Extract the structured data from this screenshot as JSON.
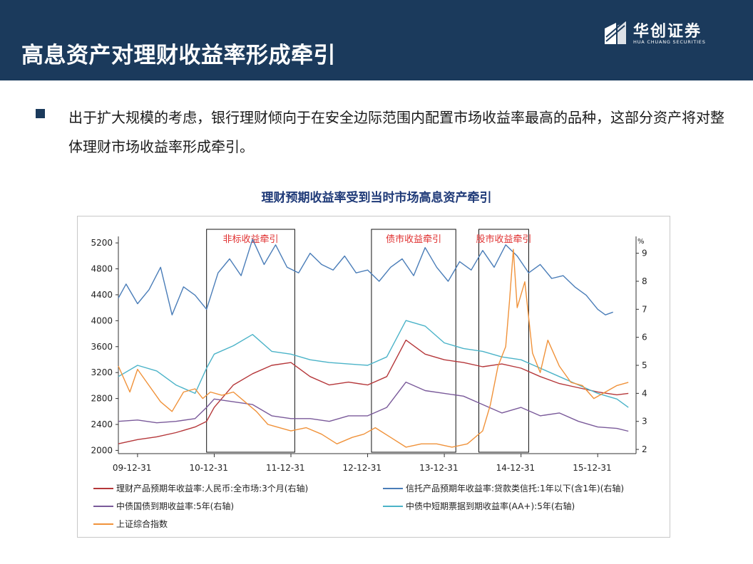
{
  "header": {
    "title": "高息资产对理财收益率形成牵引"
  },
  "logo": {
    "name_cn": "华创证券",
    "name_en": "HUA CHUANG SECURITIES"
  },
  "bullet": {
    "text": "出于扩大规模的考虑，银行理财倾向于在安全边际范围内配置市场收益率最高的品种，这部分资产将对整体理财市场收益率形成牵引。"
  },
  "colors": {
    "header_bg": "#1b3a5c",
    "chart_title": "#1f3a78",
    "wealth": "#b5373a",
    "trust": "#4a7db8",
    "govbond": "#7a5a9a",
    "note": "#4bb3c8",
    "sh": "#f0923a",
    "annotation": "#e03030"
  },
  "chart_data": {
    "type": "line",
    "title": "理财预期收益率受到当时市场高息资产牵引",
    "x_ticks": [
      "09-12-31",
      "10-12-31",
      "11-12-31",
      "12-12-31",
      "13-12-31",
      "14-12-31",
      "15-12-31"
    ],
    "x_range": [
      2009.75,
      2016.5
    ],
    "left_axis": {
      "ticks": [
        2000,
        2400,
        2800,
        3200,
        3600,
        4000,
        4400,
        4800,
        5200
      ],
      "range": [
        1950,
        5300
      ]
    },
    "right_axis": {
      "unit": "%",
      "ticks": [
        2,
        3,
        4,
        5,
        6,
        7,
        8,
        9
      ],
      "range": [
        1.85,
        9.6
      ]
    },
    "boxes": [
      {
        "label": "非标收益牵引",
        "x_from": 2010.9,
        "x_to": 2012.05
      },
      {
        "label": "债市收益牵引",
        "x_from": 2013.05,
        "x_to": 2014.15
      },
      {
        "label": "股市收益牵引",
        "x_from": 2014.45,
        "x_to": 2015.1
      }
    ],
    "series": [
      {
        "name": "理财产品预期年收益率:人民币:全市场:3个月(右轴)",
        "axis": "right",
        "color": "#b5373a",
        "x": [
          2009.75,
          2010.0,
          2010.25,
          2010.5,
          2010.75,
          2010.9,
          2011.0,
          2011.25,
          2011.5,
          2011.75,
          2012.0,
          2012.25,
          2012.5,
          2012.75,
          2013.0,
          2013.25,
          2013.5,
          2013.75,
          2014.0,
          2014.25,
          2014.5,
          2014.75,
          2015.0,
          2015.25,
          2015.5,
          2015.75,
          2016.0,
          2016.25,
          2016.4
        ],
        "values": [
          2.2,
          2.35,
          2.45,
          2.6,
          2.8,
          3.0,
          3.5,
          4.3,
          4.7,
          5.0,
          5.1,
          4.6,
          4.3,
          4.4,
          4.3,
          4.6,
          5.9,
          5.4,
          5.2,
          5.1,
          4.95,
          5.05,
          4.9,
          4.6,
          4.35,
          4.2,
          4.05,
          3.95,
          4.0
        ]
      },
      {
        "name": "信托产品预期年收益率:贷款类信托:1年以下(含1年)(右轴)",
        "axis": "right",
        "color": "#4a7db8",
        "x": [
          2009.75,
          2009.85,
          2010.0,
          2010.15,
          2010.3,
          2010.45,
          2010.6,
          2010.75,
          2010.9,
          2011.05,
          2011.2,
          2011.35,
          2011.5,
          2011.65,
          2011.8,
          2011.95,
          2012.1,
          2012.25,
          2012.4,
          2012.55,
          2012.7,
          2012.85,
          2013.0,
          2013.15,
          2013.3,
          2013.45,
          2013.6,
          2013.75,
          2013.9,
          2014.05,
          2014.2,
          2014.35,
          2014.5,
          2014.65,
          2014.8,
          2014.95,
          2015.1,
          2015.25,
          2015.4,
          2015.55,
          2015.7,
          2015.85,
          2016.0,
          2016.1,
          2016.2
        ],
        "values": [
          7.4,
          7.9,
          7.2,
          7.7,
          8.5,
          6.8,
          7.8,
          7.5,
          7.0,
          8.3,
          8.8,
          8.2,
          9.5,
          8.6,
          9.3,
          8.5,
          8.3,
          9.0,
          8.6,
          8.4,
          8.9,
          8.3,
          8.4,
          8.0,
          8.5,
          8.8,
          8.2,
          9.2,
          8.5,
          8.0,
          8.7,
          8.4,
          9.1,
          8.5,
          9.3,
          8.9,
          8.3,
          8.6,
          8.1,
          8.2,
          7.8,
          7.5,
          7.0,
          6.8,
          6.9
        ]
      },
      {
        "name": "中债国债到期收益率:5年(右轴)",
        "axis": "right",
        "color": "#7a5a9a",
        "x": [
          2009.75,
          2010.0,
          2010.25,
          2010.5,
          2010.75,
          2010.9,
          2011.0,
          2011.25,
          2011.5,
          2011.75,
          2012.0,
          2012.25,
          2012.5,
          2012.75,
          2013.0,
          2013.25,
          2013.5,
          2013.75,
          2014.0,
          2014.25,
          2014.5,
          2014.75,
          2015.0,
          2015.25,
          2015.5,
          2015.75,
          2016.0,
          2016.25,
          2016.4
        ],
        "values": [
          3.0,
          3.05,
          2.95,
          3.0,
          3.1,
          3.5,
          3.8,
          3.7,
          3.6,
          3.2,
          3.1,
          3.1,
          3.0,
          3.2,
          3.2,
          3.5,
          4.4,
          4.1,
          4.0,
          3.9,
          3.6,
          3.3,
          3.5,
          3.2,
          3.3,
          3.0,
          2.8,
          2.75,
          2.65
        ]
      },
      {
        "name": "中债中短期票据到期收益率(AA+):5年(右轴)",
        "axis": "right",
        "color": "#4bb3c8",
        "x": [
          2009.75,
          2010.0,
          2010.25,
          2010.5,
          2010.75,
          2010.9,
          2011.0,
          2011.25,
          2011.5,
          2011.75,
          2012.0,
          2012.25,
          2012.5,
          2012.75,
          2013.0,
          2013.25,
          2013.5,
          2013.75,
          2014.0,
          2014.25,
          2014.5,
          2014.75,
          2015.0,
          2015.25,
          2015.5,
          2015.75,
          2016.0,
          2016.25,
          2016.4
        ],
        "values": [
          4.6,
          5.0,
          4.8,
          4.3,
          4.0,
          4.9,
          5.4,
          5.7,
          6.1,
          5.5,
          5.4,
          5.2,
          5.1,
          5.05,
          5.0,
          5.3,
          6.6,
          6.4,
          5.8,
          5.6,
          5.5,
          5.3,
          5.2,
          4.9,
          4.6,
          4.3,
          4.0,
          3.8,
          3.5
        ]
      },
      {
        "name": "上证综合指数",
        "axis": "left",
        "color": "#f0923a",
        "x": [
          2009.75,
          2009.9,
          2010.0,
          2010.15,
          2010.3,
          2010.45,
          2010.6,
          2010.75,
          2010.85,
          2010.95,
          2011.1,
          2011.25,
          2011.4,
          2011.55,
          2011.7,
          2011.85,
          2012.0,
          2012.2,
          2012.4,
          2012.6,
          2012.8,
          2012.95,
          2013.1,
          2013.3,
          2013.5,
          2013.7,
          2013.9,
          2014.1,
          2014.3,
          2014.5,
          2014.6,
          2014.7,
          2014.8,
          2014.85,
          2014.9,
          2014.95,
          2015.05,
          2015.15,
          2015.25,
          2015.35,
          2015.5,
          2015.65,
          2015.8,
          2015.95,
          2016.1,
          2016.25,
          2016.4
        ],
        "values": [
          3300,
          2900,
          3250,
          3000,
          2750,
          2600,
          2900,
          2950,
          2800,
          2900,
          2850,
          2900,
          2750,
          2600,
          2400,
          2350,
          2300,
          2350,
          2250,
          2100,
          2200,
          2250,
          2350,
          2200,
          2050,
          2100,
          2100,
          2050,
          2100,
          2300,
          2700,
          3300,
          3600,
          4300,
          5100,
          4200,
          4600,
          3500,
          3200,
          3700,
          3300,
          3050,
          3000,
          2800,
          2900,
          3000,
          3050
        ]
      }
    ]
  }
}
